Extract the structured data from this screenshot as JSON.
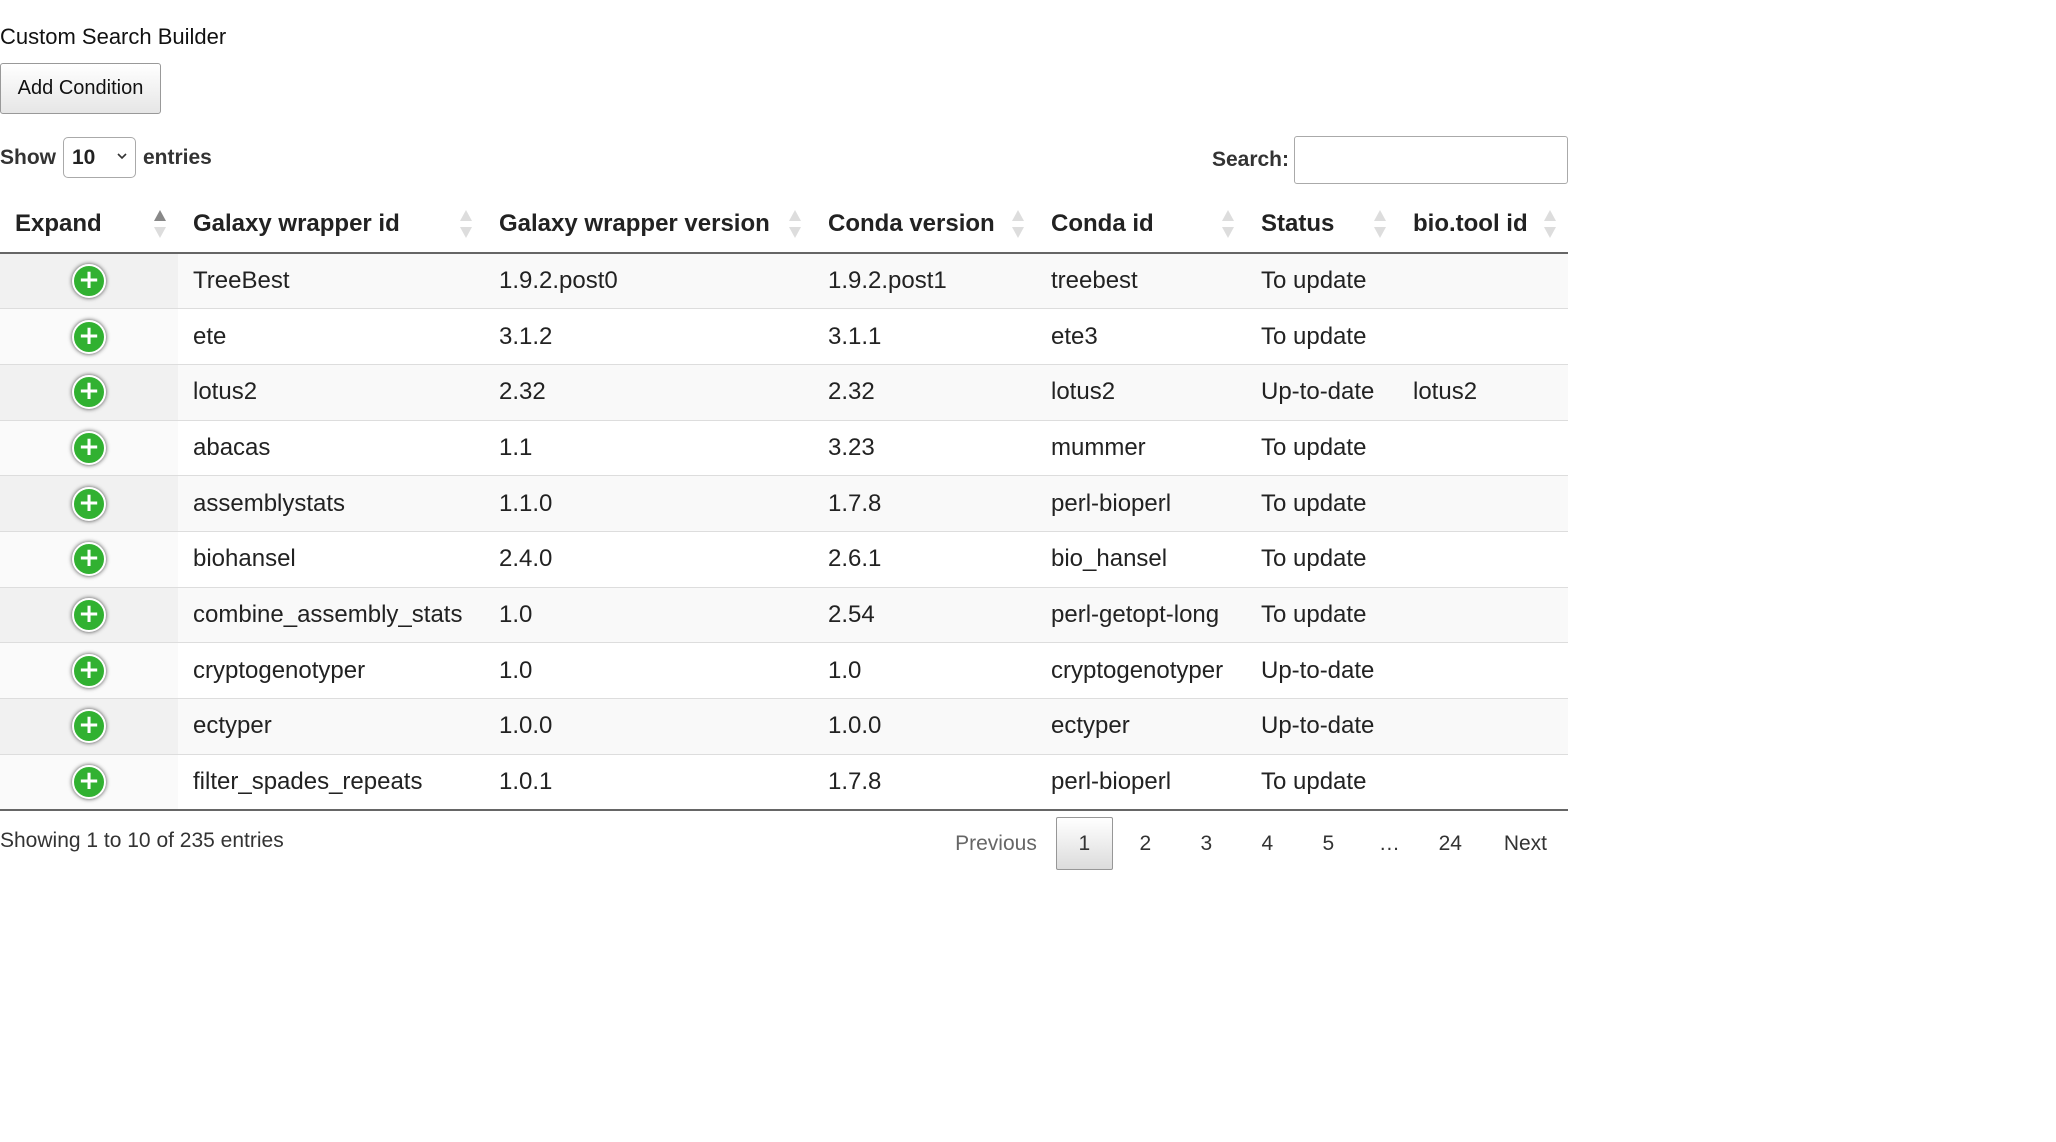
{
  "builder": {
    "title": "Custom Search Builder",
    "add_condition_label": "Add Condition"
  },
  "length": {
    "show_label": "Show",
    "value": "10",
    "entries_label": "entries"
  },
  "search": {
    "label": "Search:",
    "value": ""
  },
  "table": {
    "columns": [
      {
        "key": "expand",
        "label": "Expand",
        "sort": "asc"
      },
      {
        "key": "wrapper_id",
        "label": "Galaxy wrapper id",
        "sort": "none"
      },
      {
        "key": "wrapper_version",
        "label": "Galaxy wrapper version",
        "sort": "none"
      },
      {
        "key": "conda_version",
        "label": "Conda version",
        "sort": "none"
      },
      {
        "key": "conda_id",
        "label": "Conda id",
        "sort": "none"
      },
      {
        "key": "status",
        "label": "Status",
        "sort": "none"
      },
      {
        "key": "biotool_id",
        "label": "bio.tool id",
        "sort": "none"
      }
    ],
    "rows": [
      {
        "wrapper_id": "TreeBest",
        "wrapper_version": "1.9.2.post0",
        "conda_version": "1.9.2.post1",
        "conda_id": "treebest",
        "status": "To update",
        "biotool_id": ""
      },
      {
        "wrapper_id": "ete",
        "wrapper_version": "3.1.2",
        "conda_version": "3.1.1",
        "conda_id": "ete3",
        "status": "To update",
        "biotool_id": ""
      },
      {
        "wrapper_id": "lotus2",
        "wrapper_version": "2.32",
        "conda_version": "2.32",
        "conda_id": "lotus2",
        "status": "Up-to-date",
        "biotool_id": "lotus2"
      },
      {
        "wrapper_id": "abacas",
        "wrapper_version": "1.1",
        "conda_version": "3.23",
        "conda_id": "mummer",
        "status": "To update",
        "biotool_id": ""
      },
      {
        "wrapper_id": "assemblystats",
        "wrapper_version": "1.1.0",
        "conda_version": "1.7.8",
        "conda_id": "perl-bioperl",
        "status": "To update",
        "biotool_id": ""
      },
      {
        "wrapper_id": "biohansel",
        "wrapper_version": "2.4.0",
        "conda_version": "2.6.1",
        "conda_id": "bio_hansel",
        "status": "To update",
        "biotool_id": ""
      },
      {
        "wrapper_id": "combine_assembly_stats",
        "wrapper_version": "1.0",
        "conda_version": "2.54",
        "conda_id": "perl-getopt-long",
        "status": "To update",
        "biotool_id": ""
      },
      {
        "wrapper_id": "cryptogenotyper",
        "wrapper_version": "1.0",
        "conda_version": "1.0",
        "conda_id": "cryptogenotyper",
        "status": "Up-to-date",
        "biotool_id": ""
      },
      {
        "wrapper_id": "ectyper",
        "wrapper_version": "1.0.0",
        "conda_version": "1.0.0",
        "conda_id": "ectyper",
        "status": "Up-to-date",
        "biotool_id": ""
      },
      {
        "wrapper_id": "filter_spades_repeats",
        "wrapper_version": "1.0.1",
        "conda_version": "1.7.8",
        "conda_id": "perl-bioperl",
        "status": "To update",
        "biotool_id": ""
      }
    ],
    "expand_icon": "plus-circle-icon"
  },
  "footer": {
    "info": "Showing 1 to 10 of 235 entries",
    "pagination": {
      "previous": "Previous",
      "pages": [
        "1",
        "2",
        "3",
        "4",
        "5"
      ],
      "ellipsis": "…",
      "last": "24",
      "next": "Next",
      "current": "1"
    }
  },
  "colors": {
    "expand_button": "#31b131"
  }
}
